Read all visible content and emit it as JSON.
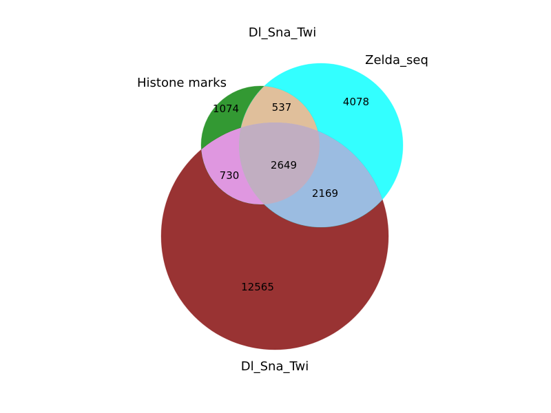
{
  "title": "Dl_Sna_Twi",
  "sets": [
    {
      "key": "histone",
      "label": "Histone marks",
      "color": "#008000"
    },
    {
      "key": "zelda",
      "label": "Zelda_seq",
      "color": "#00ffff"
    },
    {
      "key": "dst",
      "label": "Dl_Sna_Twi",
      "color": "#800000"
    }
  ],
  "regions": [
    {
      "key": "histone_only",
      "sets": [
        "histone"
      ],
      "value": "1074"
    },
    {
      "key": "histone_zelda",
      "sets": [
        "histone",
        "zelda"
      ],
      "value": "537"
    },
    {
      "key": "zelda_only",
      "sets": [
        "zelda"
      ],
      "value": "4078"
    },
    {
      "key": "histone_dst",
      "sets": [
        "histone",
        "dst"
      ],
      "value": "730"
    },
    {
      "key": "all_three",
      "sets": [
        "histone",
        "zelda",
        "dst"
      ],
      "value": "2649"
    },
    {
      "key": "zelda_dst",
      "sets": [
        "zelda",
        "dst"
      ],
      "value": "2169"
    },
    {
      "key": "dst_only",
      "sets": [
        "dst"
      ],
      "value": "12565"
    }
  ],
  "colors": {
    "background": "#ffffff",
    "histone_fill": "#008000",
    "zelda_fill": "#00ffff",
    "dst_fill": "#800000",
    "text": "#000000"
  }
}
